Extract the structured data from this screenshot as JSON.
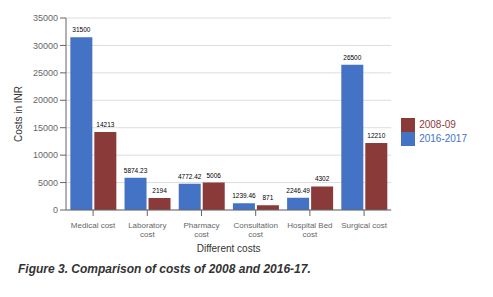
{
  "chart_data": {
    "type": "bar",
    "title": "Figure 3.  Comparison of costs of 2008 and 2016-17.",
    "xlabel": "Different costs",
    "ylabel": "Costs in INR",
    "categories": [
      "Medical cost",
      "Laboratory\ncost",
      "Pharmacy\ncost",
      "Consultation\ncost",
      "Hospital Bed\ncost",
      "Surgical cost"
    ],
    "series": [
      {
        "name": "2016-2017",
        "color": "#4472C4",
        "values": [
          31500,
          5874.23,
          4772.42,
          1239.46,
          2246.49,
          26500
        ]
      },
      {
        "name": "2008-09",
        "color": "#8B3A3A",
        "values": [
          14213,
          2194,
          5006,
          871,
          4302,
          12210
        ]
      }
    ],
    "ylim": [
      0,
      35000
    ],
    "yticks": [
      0,
      5000,
      10000,
      15000,
      20000,
      25000,
      30000,
      35000
    ],
    "grid": true,
    "legend": "right",
    "data_labels": true
  }
}
